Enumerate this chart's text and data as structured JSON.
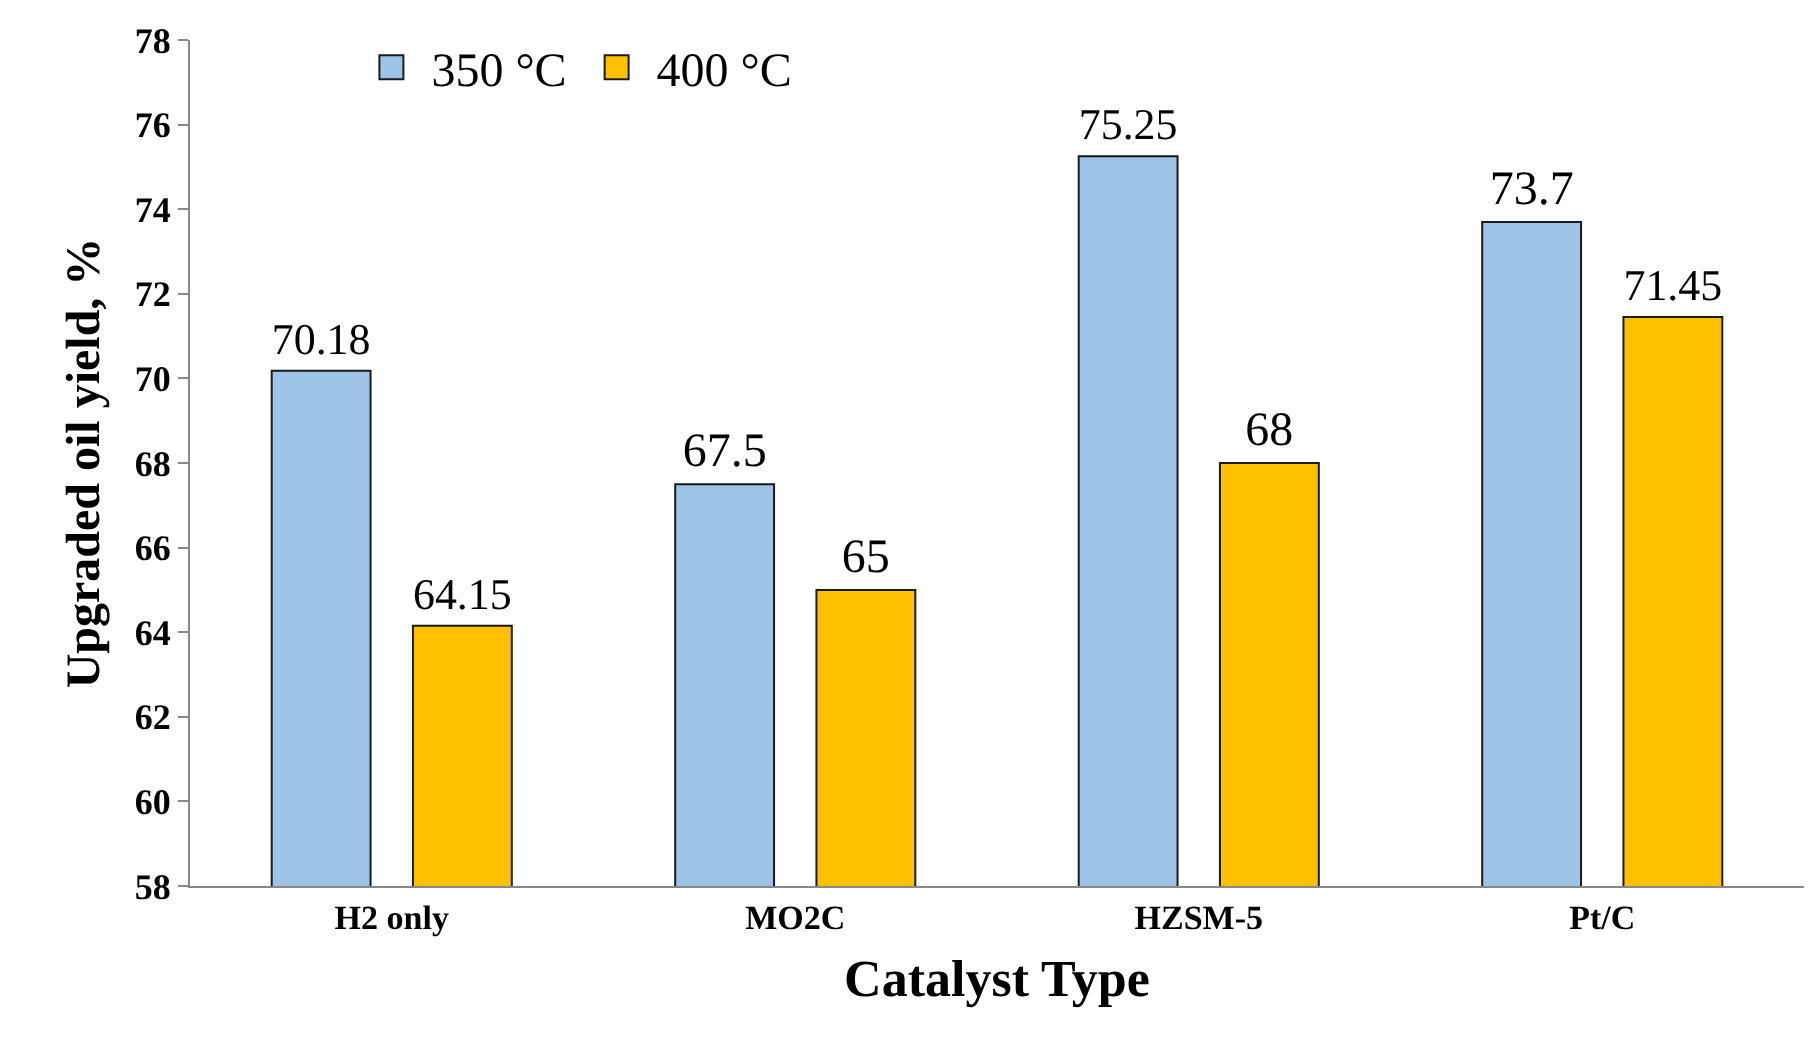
{
  "chart_data": {
    "type": "bar",
    "xlabel": "Catalyst Type",
    "ylabel": "Upgraded oil yield, %",
    "categories": [
      "H2 only",
      "MO2C",
      "HZSM-5",
      "Pt/C"
    ],
    "series": [
      {
        "name": "350 °C",
        "color": "#9dc3e6",
        "values": [
          70.18,
          67.5,
          75.25,
          73.7
        ]
      },
      {
        "name": "400 °C",
        "color": "#ffc000",
        "values": [
          64.15,
          65,
          68,
          71.45
        ]
      }
    ],
    "ylim": [
      58,
      78
    ],
    "yticks": [
      58,
      60,
      62,
      64,
      66,
      68,
      70,
      72,
      74,
      76,
      78
    ],
    "data_labels": true,
    "grid": false,
    "legend": "top left"
  }
}
